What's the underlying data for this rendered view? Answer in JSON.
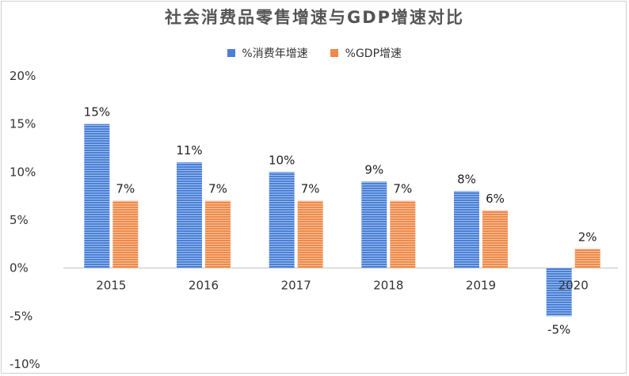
{
  "chart_data": {
    "type": "bar",
    "title": "社会消费品零售增速与GDP增速对比",
    "categories": [
      "2015",
      "2016",
      "2017",
      "2018",
      "2019",
      "2020"
    ],
    "series": [
      {
        "name": "%消费年增速",
        "values": [
          15,
          11,
          10,
          9,
          8,
          -5
        ],
        "labels": [
          "15%",
          "11%",
          "10%",
          "9%",
          "8%",
          "-5%"
        ],
        "color": "#4a7fd4"
      },
      {
        "name": "%GDP增速",
        "values": [
          7,
          7,
          7,
          7,
          6,
          2
        ],
        "labels": [
          "7%",
          "7%",
          "7%",
          "7%",
          "6%",
          "2%"
        ],
        "color": "#ee8a4a"
      }
    ],
    "ylim": [
      -10,
      20
    ],
    "yticks": [
      "20%",
      "15%",
      "10%",
      "5%",
      "0%",
      "-5%",
      "-10%"
    ],
    "ytick_values": [
      20,
      15,
      10,
      5,
      0,
      -5,
      -10
    ],
    "grid": false,
    "legend_position": "top"
  }
}
